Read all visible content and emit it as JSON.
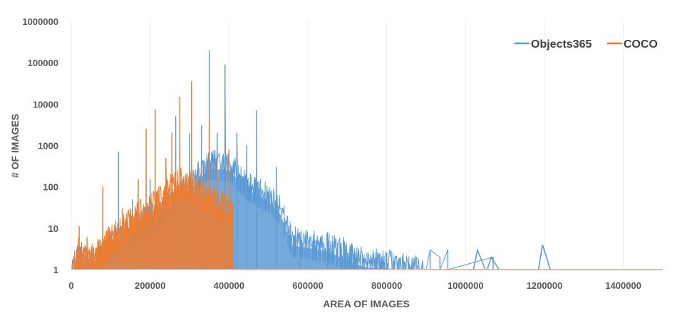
{
  "chart_data": {
    "type": "line",
    "title": "",
    "xlabel": "AREA OF IMAGES",
    "ylabel": "# OF IMAGES",
    "yscale": "log",
    "xlim": [
      0,
      1500000
    ],
    "ylim": [
      1,
      1000000
    ],
    "x_ticks": [
      "0",
      "200000",
      "400000",
      "600000",
      "800000",
      "1000000",
      "1200000",
      "1400000"
    ],
    "y_ticks": [
      "1",
      "10",
      "100",
      "1000",
      "10000",
      "100000",
      "1000000"
    ],
    "grid": "vertical",
    "legend": "top-right",
    "series": [
      {
        "name": "Objects365",
        "color": "#5B9BD5",
        "points": [
          [
            0,
            1
          ],
          [
            20000,
            3
          ],
          [
            50000,
            2
          ],
          [
            70000,
            3
          ],
          [
            100000,
            6
          ],
          [
            150000,
            12
          ],
          [
            200000,
            25
          ],
          [
            250000,
            60
          ],
          [
            300000,
            150
          ],
          [
            350000,
            500
          ],
          [
            400000,
            450
          ],
          [
            450000,
            150
          ],
          [
            500000,
            80
          ],
          [
            530000,
            40
          ],
          [
            560000,
            7
          ],
          [
            600000,
            6
          ],
          [
            650000,
            5
          ],
          [
            700000,
            3
          ],
          [
            750000,
            2
          ],
          [
            800000,
            2
          ],
          [
            850000,
            1.5
          ],
          [
            900000,
            1.2
          ],
          [
            1000000,
            1
          ],
          [
            1500000,
            1
          ]
        ],
        "spikes": [
          [
            15000,
            3
          ],
          [
            120000,
            700
          ],
          [
            155000,
            50
          ],
          [
            200000,
            150
          ],
          [
            265000,
            5000
          ],
          [
            300000,
            2000
          ],
          [
            330000,
            3000
          ],
          [
            350000,
            200000
          ],
          [
            370000,
            2000
          ],
          [
            390000,
            90000
          ],
          [
            420000,
            2000
          ],
          [
            445000,
            1000
          ],
          [
            470000,
            7000
          ],
          [
            520000,
            300
          ],
          [
            580000,
            8
          ],
          [
            650000,
            8
          ],
          [
            690000,
            6
          ],
          [
            750000,
            2.5
          ],
          [
            800000,
            2.5
          ],
          [
            910000,
            3
          ],
          [
            935000,
            2
          ],
          [
            955000,
            3
          ],
          [
            1070000,
            2
          ]
        ],
        "bumps": [
          [
            1030000,
            3
          ],
          [
            1065000,
            2
          ],
          [
            1195000,
            4
          ]
        ]
      },
      {
        "name": "COCO",
        "color": "#ED7D31",
        "points": [
          [
            0,
            1
          ],
          [
            20000,
            4
          ],
          [
            40000,
            2
          ],
          [
            60000,
            3
          ],
          [
            80000,
            4
          ],
          [
            100000,
            8
          ],
          [
            130000,
            12
          ],
          [
            160000,
            25
          ],
          [
            200000,
            40
          ],
          [
            240000,
            100
          ],
          [
            280000,
            180
          ],
          [
            320000,
            120
          ],
          [
            360000,
            60
          ],
          [
            410000,
            40
          ]
        ],
        "spikes": [
          [
            20000,
            11
          ],
          [
            40000,
            6
          ],
          [
            80000,
            100
          ],
          [
            130000,
            30
          ],
          [
            170000,
            150
          ],
          [
            190000,
            2500
          ],
          [
            213000,
            7500
          ],
          [
            240000,
            500
          ],
          [
            255000,
            2000
          ],
          [
            275000,
            15000
          ],
          [
            305000,
            35000
          ],
          [
            330000,
            300
          ],
          [
            350000,
            4000
          ],
          [
            370000,
            500
          ],
          [
            400000,
            800
          ]
        ]
      }
    ]
  }
}
